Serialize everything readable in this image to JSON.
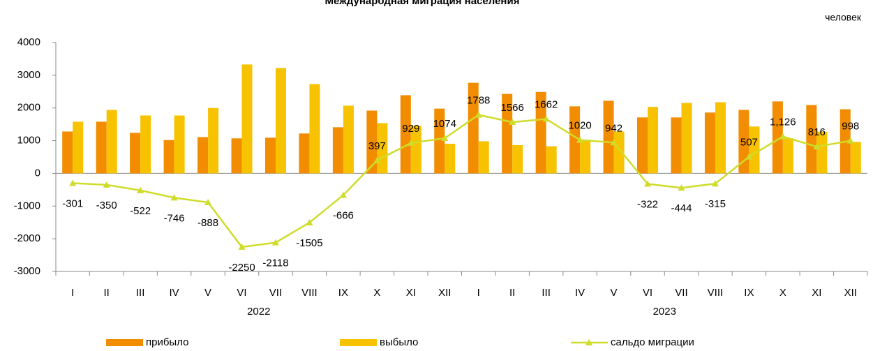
{
  "chart_data": {
    "type": "bar-line",
    "title": "Международная миграция населения",
    "unit_label": "человек",
    "categories": [
      "I",
      "II",
      "III",
      "IV",
      "V",
      "VI",
      "VII",
      "VIII",
      "IX",
      "X",
      "XI",
      "XII",
      "I",
      "II",
      "III",
      "IV",
      "V",
      "VI",
      "VII",
      "VIII",
      "IX",
      "X",
      "XI",
      "XII"
    ],
    "groups": [
      {
        "label": "2022",
        "size": 12
      },
      {
        "label": "2023",
        "size": 12
      }
    ],
    "ylim": [
      -3000,
      4000
    ],
    "yticks": [
      -3000,
      -2000,
      -1000,
      0,
      1000,
      2000,
      3000,
      4000
    ],
    "series": [
      {
        "name": "прибыло",
        "kind": "bar",
        "color": "#f28c00",
        "values": [
          1280,
          1580,
          1240,
          1020,
          1110,
          1070,
          1090,
          1220,
          1410,
          1920,
          2390,
          1980,
          2770,
          2430,
          2490,
          2050,
          2220,
          1710,
          1710,
          1860,
          1940,
          2200,
          2090,
          1960
        ]
      },
      {
        "name": "выбыло",
        "kind": "bar",
        "color": "#f7c300",
        "values": [
          1580,
          1940,
          1770,
          1770,
          2000,
          3330,
          3220,
          2730,
          2070,
          1535,
          1460,
          906,
          982,
          864,
          828,
          1030,
          1278,
          2032,
          2154,
          2175,
          1433,
          1074,
          1274,
          962
        ]
      },
      {
        "name": "сальдо миграции",
        "kind": "line",
        "color": "#cfdc2a",
        "values": [
          -301,
          -350,
          -522,
          -746,
          -888,
          -2250,
          -2118,
          -1505,
          -666,
          397,
          929,
          1074,
          1788,
          1566,
          1662,
          1020,
          942,
          -322,
          -444,
          -315,
          507,
          1126,
          816,
          998
        ],
        "value_labels": [
          "-301",
          "-350",
          "-522",
          "-746",
          "-888",
          "-2250",
          "-2118",
          "-1505",
          "-666",
          "397",
          "929",
          "1074",
          "1788",
          "1566",
          "1662",
          "1020",
          "942",
          "-322",
          "-444",
          "-315",
          "507",
          "1,126",
          "816",
          "998"
        ]
      }
    ]
  }
}
